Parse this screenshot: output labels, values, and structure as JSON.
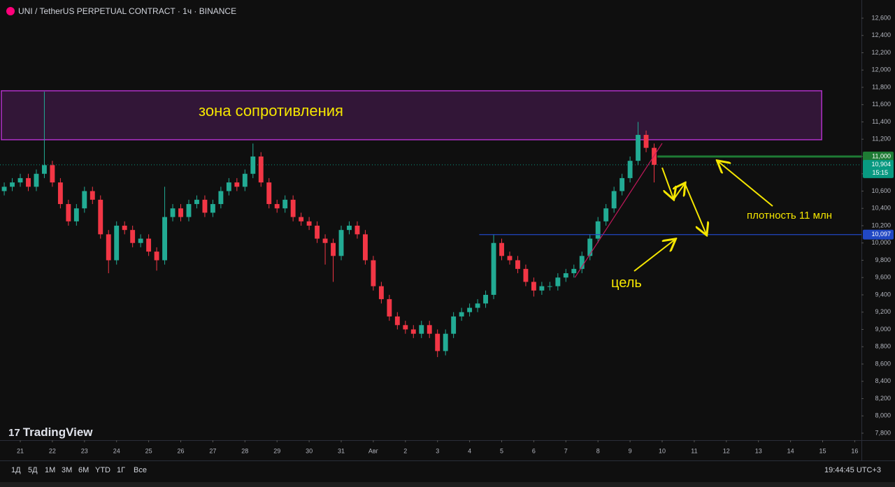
{
  "header": {
    "title": "UNI / TetherUS PERPETUAL CONTRACT · 1ч · BINANCE"
  },
  "logo": "TradingView",
  "toolbar": {
    "ranges": [
      "1Д",
      "5Д",
      "1М",
      "3М",
      "6М",
      "YTD",
      "1Г",
      "Все"
    ],
    "clock": "19:44:45 UTC+3"
  },
  "annotations": {
    "density": "плотность 11 млн",
    "target": "цель"
  },
  "chart_data": {
    "type": "candlestick",
    "up_color": "#22ab94",
    "down_color": "#f23645",
    "grid": false,
    "xlim": [
      -0.632,
      26.209
    ],
    "ylim": [
      7719,
      12810
    ],
    "x": [
      -0.5,
      -0.25,
      0,
      0.25,
      0.5,
      0.75,
      1,
      1.25,
      1.5,
      1.75,
      2,
      2.25,
      2.5,
      2.75,
      3,
      3.25,
      3.5,
      3.75,
      4,
      4.25,
      4.5,
      4.75,
      5,
      5.25,
      5.5,
      5.75,
      6,
      6.25,
      6.5,
      6.75,
      7,
      7.25,
      7.5,
      7.75,
      8,
      8.25,
      8.5,
      8.75,
      9,
      9.25,
      9.5,
      9.75,
      10,
      10.25,
      10.5,
      10.75,
      11,
      11.25,
      11.5,
      11.75,
      12,
      12.25,
      12.5,
      12.75,
      13,
      13.25,
      13.5,
      13.75,
      14,
      14.25,
      14.5,
      14.75,
      15,
      15.25,
      15.5,
      15.75,
      16,
      16.25,
      16.5,
      16.75,
      17,
      17.25,
      17.5,
      17.75,
      18,
      18.25,
      18.5,
      18.75,
      19,
      19.25,
      19.5,
      19.75
    ],
    "open": [
      10600,
      10650,
      10700,
      10750,
      10650,
      10800,
      10900,
      10700,
      10450,
      10250,
      10400,
      10600,
      10500,
      10100,
      9800,
      10200,
      10150,
      10000,
      10050,
      9900,
      9800,
      10300,
      10400,
      10300,
      10450,
      10500,
      10350,
      10450,
      10600,
      10700,
      10650,
      10800,
      11000,
      10700,
      10450,
      10400,
      10500,
      10300,
      10250,
      10200,
      10050,
      10000,
      9850,
      10150,
      10200,
      10100,
      9800,
      9500,
      9350,
      9150,
      9050,
      9000,
      8950,
      9050,
      8950,
      8750,
      8950,
      9150,
      9200,
      9250,
      9300,
      9400,
      10000,
      9850,
      9800,
      9700,
      9550,
      9450,
      9500,
      9500,
      9600,
      9650,
      9700,
      9850,
      10050,
      10250,
      10400,
      10600,
      10750,
      10950,
      11250,
      11100
    ],
    "high": [
      10700,
      10750,
      10800,
      10800,
      10850,
      11750,
      10950,
      10750,
      10500,
      10450,
      10650,
      10650,
      10550,
      10150,
      10250,
      10250,
      10200,
      10100,
      10100,
      9950,
      10650,
      10450,
      10450,
      10500,
      10550,
      10550,
      10500,
      10650,
      10750,
      10750,
      10850,
      11150,
      11050,
      10750,
      10500,
      10550,
      10550,
      10350,
      10300,
      10250,
      10100,
      10050,
      10200,
      10250,
      10250,
      10150,
      9850,
      9550,
      9400,
      9200,
      9100,
      9050,
      9100,
      9100,
      9000,
      9000,
      9200,
      9250,
      9300,
      9350,
      9450,
      10100,
      10050,
      9900,
      9850,
      9750,
      9600,
      9550,
      9550,
      9650,
      9700,
      9750,
      9900,
      10100,
      10300,
      10450,
      10650,
      10800,
      11000,
      11400,
      11300,
      11150
    ],
    "low": [
      10550,
      10600,
      10650,
      10600,
      10600,
      10750,
      10650,
      10400,
      10200,
      10200,
      10350,
      10450,
      10050,
      9650,
      9750,
      10100,
      9950,
      9950,
      9850,
      9680,
      9750,
      10250,
      10250,
      10250,
      10400,
      10300,
      10300,
      10400,
      10550,
      10600,
      10600,
      10750,
      10650,
      10400,
      10350,
      10350,
      10250,
      10200,
      10150,
      10000,
      9750,
      9550,
      9800,
      10100,
      10050,
      9750,
      9450,
      9300,
      9100,
      9000,
      8950,
      8900,
      8900,
      8900,
      8680,
      8700,
      8900,
      9100,
      9150,
      9200,
      9250,
      9350,
      9800,
      9750,
      9650,
      9500,
      9380,
      9400,
      9450,
      9450,
      9550,
      9600,
      9650,
      9800,
      10000,
      10200,
      10350,
      10550,
      10700,
      10900,
      11050,
      10700
    ],
    "close": [
      10650,
      10700,
      10750,
      10650,
      10800,
      10900,
      10700,
      10450,
      10250,
      10400,
      10600,
      10500,
      10100,
      9800,
      10200,
      10150,
      10000,
      10050,
      9900,
      9800,
      10300,
      10400,
      10300,
      10450,
      10500,
      10350,
      10450,
      10600,
      10700,
      10650,
      10800,
      11000,
      10700,
      10450,
      10400,
      10500,
      10300,
      10250,
      10200,
      10050,
      10000,
      9850,
      10150,
      10200,
      10100,
      9800,
      9500,
      9350,
      9150,
      9050,
      9000,
      8950,
      9050,
      8950,
      8750,
      8950,
      9150,
      9200,
      9250,
      9300,
      9400,
      10000,
      9850,
      9800,
      9700,
      9550,
      9450,
      9500,
      9500,
      9600,
      9650,
      9700,
      9850,
      10050,
      10250,
      10400,
      10600,
      10750,
      10950,
      11250,
      11100,
      10904
    ],
    "xticks": [
      {
        "value": 0,
        "label": "21"
      },
      {
        "value": 1,
        "label": "22"
      },
      {
        "value": 2,
        "label": "23"
      },
      {
        "value": 3,
        "label": "24"
      },
      {
        "value": 4,
        "label": "25"
      },
      {
        "value": 5,
        "label": "26"
      },
      {
        "value": 6,
        "label": "27"
      },
      {
        "value": 7,
        "label": "28"
      },
      {
        "value": 8,
        "label": "29"
      },
      {
        "value": 9,
        "label": "30"
      },
      {
        "value": 10,
        "label": "31"
      },
      {
        "value": 11,
        "label": "Авг"
      },
      {
        "value": 12,
        "label": "2"
      },
      {
        "value": 13,
        "label": "3"
      },
      {
        "value": 14,
        "label": "4"
      },
      {
        "value": 15,
        "label": "5"
      },
      {
        "value": 16,
        "label": "6"
      },
      {
        "value": 17,
        "label": "7"
      },
      {
        "value": 18,
        "label": "8"
      },
      {
        "value": 19,
        "label": "9"
      },
      {
        "value": 20,
        "label": "10"
      },
      {
        "value": 21,
        "label": "11"
      },
      {
        "value": 22,
        "label": "12"
      },
      {
        "value": 23,
        "label": "13"
      },
      {
        "value": 24,
        "label": "14"
      },
      {
        "value": 25,
        "label": "15"
      },
      {
        "value": 26,
        "label": "16"
      }
    ],
    "yticks": [
      {
        "value": 7800,
        "label": "7,800"
      },
      {
        "value": 8000,
        "label": "8,000"
      },
      {
        "value": 8200,
        "label": "8,200"
      },
      {
        "value": 8400,
        "label": "8,400"
      },
      {
        "value": 8600,
        "label": "8,600"
      },
      {
        "value": 8800,
        "label": "8,800"
      },
      {
        "value": 9000,
        "label": "9,000"
      },
      {
        "value": 9200,
        "label": "9,200"
      },
      {
        "value": 9400,
        "label": "9,400"
      },
      {
        "value": 9600,
        "label": "9,600"
      },
      {
        "value": 9800,
        "label": "9,800"
      },
      {
        "value": 10000,
        "label": "10,000"
      },
      {
        "value": 10200,
        "label": "10,200"
      },
      {
        "value": 10400,
        "label": "10,400"
      },
      {
        "value": 10600,
        "label": "10,600"
      },
      {
        "value": 10800,
        "label": "10,800"
      },
      {
        "value": 11000,
        "label": "11,000"
      },
      {
        "value": 11200,
        "label": "11,200"
      },
      {
        "value": 11400,
        "label": "11,400"
      },
      {
        "value": 11600,
        "label": "11,600"
      },
      {
        "value": 11800,
        "label": "11,800"
      },
      {
        "value": 12000,
        "label": "12,000"
      },
      {
        "value": 12200,
        "label": "12,200"
      },
      {
        "value": 12400,
        "label": "12,400"
      },
      {
        "value": 12600,
        "label": "12,600"
      }
    ],
    "zone": {
      "label": "зона сопротивления",
      "low": 11194,
      "high": 11760,
      "from": -0.59,
      "to": 24.97,
      "color": "#b030c8"
    },
    "levels": [
      {
        "value": 11000,
        "label": "11,000",
        "color": "#1e7b34",
        "from": 19.85
      },
      {
        "value": 10097,
        "label": "10,097",
        "color": "#2148c4",
        "from": 14.3
      }
    ],
    "last_price": {
      "value": 10904,
      "label": "10,904",
      "countdown": "15:15",
      "color": "#089981"
    },
    "trendline": {
      "x": [
        17.28,
        20.0
      ],
      "y": [
        9600,
        11153
      ],
      "color": "#c2185b"
    }
  }
}
